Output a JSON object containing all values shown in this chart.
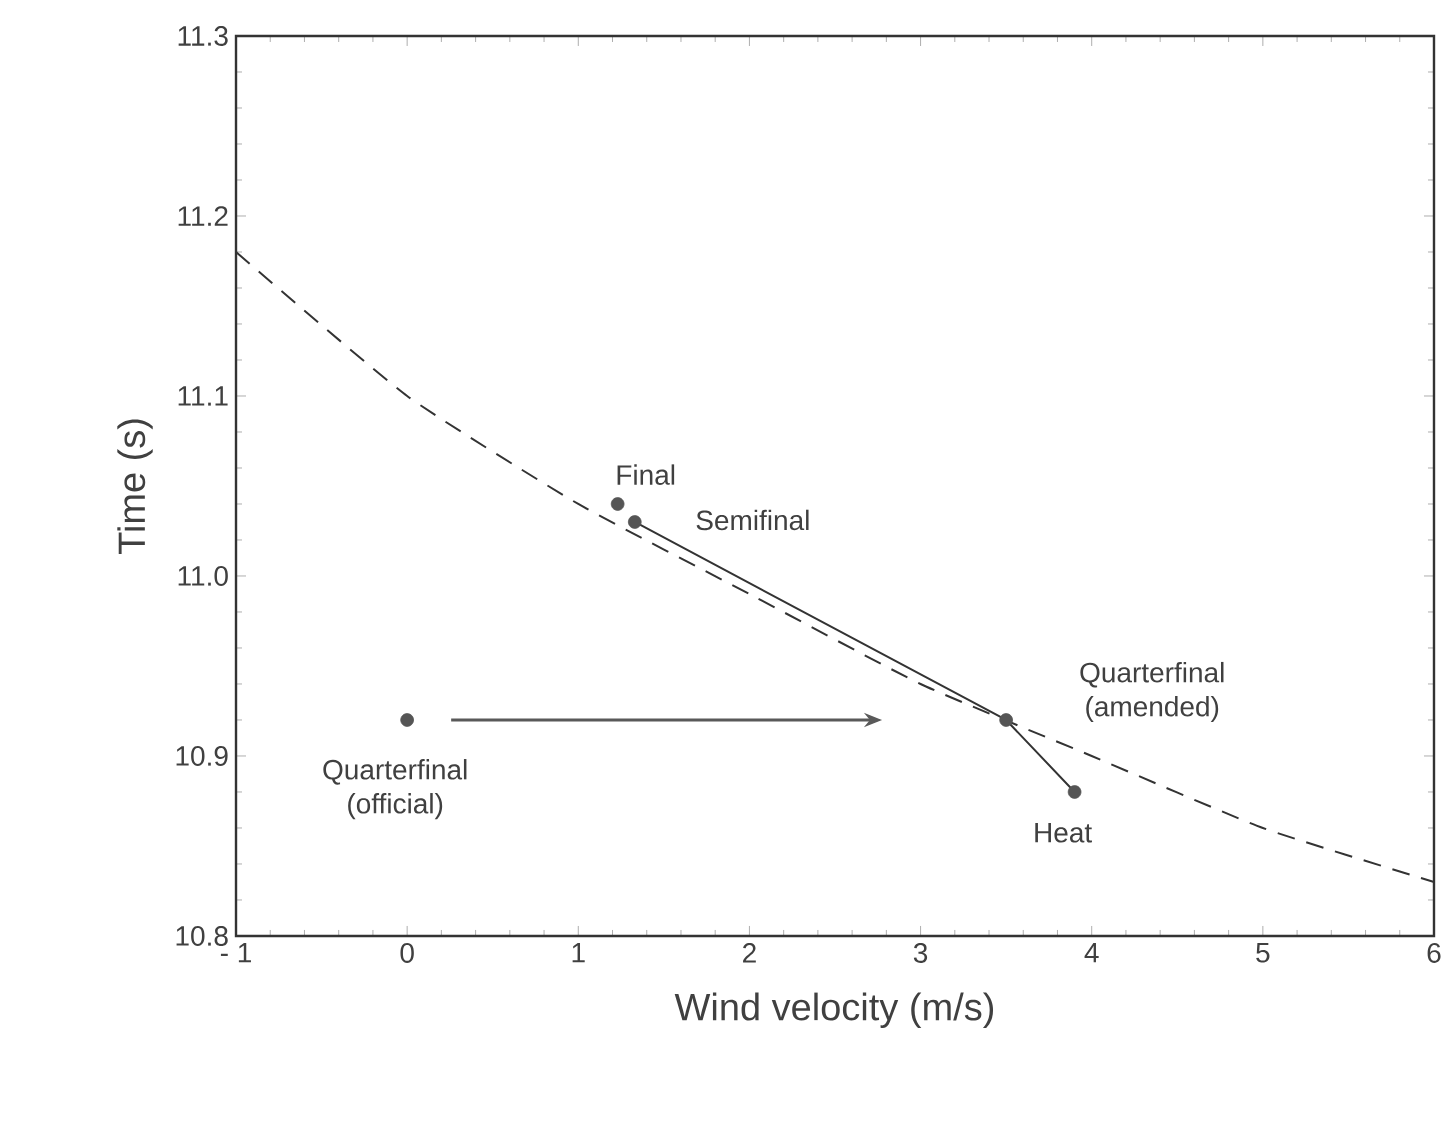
{
  "chart_data": {
    "type": "scatter",
    "xlabel": "Wind velocity (m/s)",
    "ylabel": "Time (s)",
    "xlim": [
      -1,
      6
    ],
    "ylim": [
      10.8,
      11.3
    ],
    "xticks": [
      {
        "value": -1,
        "label": "- 1"
      },
      0,
      1,
      2,
      3,
      4,
      5,
      6
    ],
    "yticks": [
      10.8,
      10.9,
      {
        "value": 11.0,
        "label": "11.0"
      },
      11.1,
      11.2,
      11.3
    ],
    "series": [
      {
        "color": "#555555",
        "marker": "circle",
        "x": [
          1.23,
          1.33,
          3.5,
          3.9,
          0
        ],
        "values": [
          11.04,
          11.03,
          10.92,
          10.88,
          10.92
        ]
      },
      {
        "type": "line",
        "color": "#333333",
        "line_style": "solid",
        "marker": "none",
        "x": [
          1.33,
          3.5,
          3.9
        ],
        "values": [
          11.03,
          10.92,
          10.88
        ]
      },
      {
        "type": "line",
        "color": "#333333",
        "line_style": "dashed",
        "marker": "none",
        "x": [
          -1,
          0,
          1,
          2,
          3,
          4,
          5,
          6
        ],
        "values": [
          11.18,
          11.1,
          11.04,
          10.99,
          10.94,
          10.9,
          10.86,
          10.83
        ]
      }
    ],
    "annotations": [
      {
        "text": "Final",
        "x": 1.23,
        "y": 11.04
      },
      {
        "text": "Semifinal",
        "x": 1.33,
        "y": 11.03
      },
      {
        "text": "Quarterfinal (amended)",
        "x": 3.5,
        "y": 10.92
      },
      {
        "text": "Heat",
        "x": 3.9,
        "y": 10.88
      },
      {
        "text": "Quarterfinal (official)",
        "x": 0,
        "y": 10.92
      }
    ]
  }
}
